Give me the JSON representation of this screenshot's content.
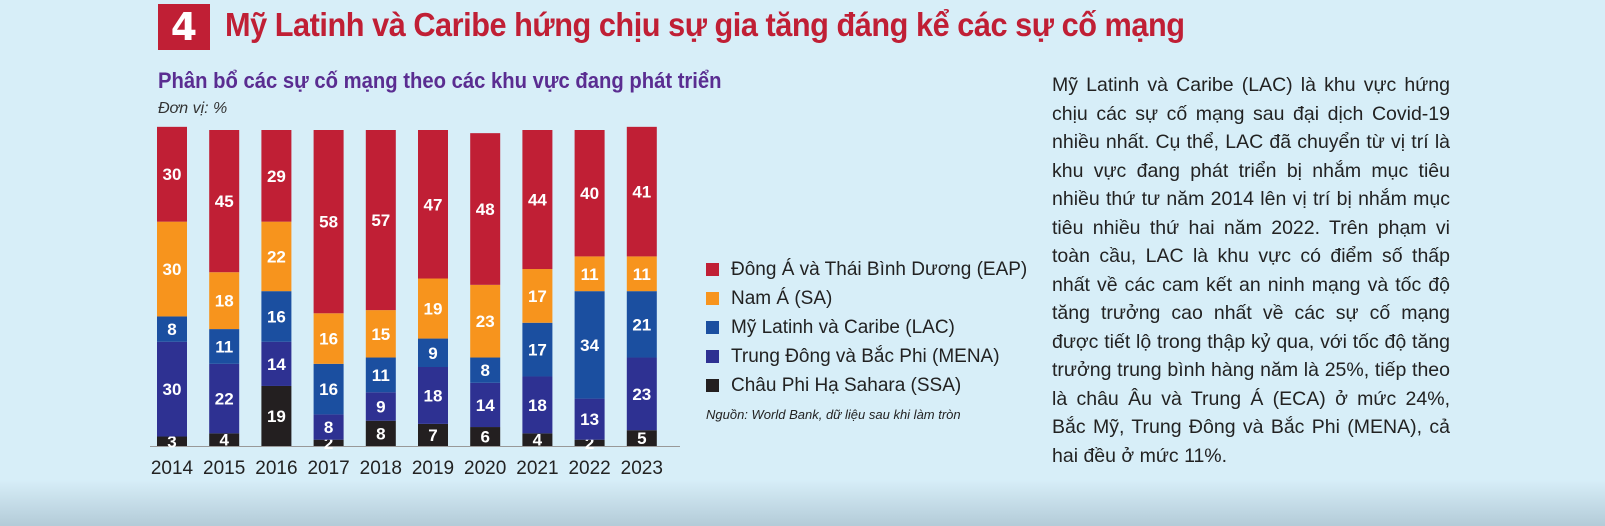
{
  "header": {
    "number": "4",
    "title": "Mỹ Latinh và Caribe hứng chịu sự gia tăng đáng kể các sự cố mạng"
  },
  "chart_data": {
    "type": "bar",
    "stacked": true,
    "title": "Phân bổ các sự cố mạng theo các khu vực đang phát triển",
    "unit_label": "Đơn vị: %",
    "categories": [
      "2014",
      "2015",
      "2016",
      "2017",
      "2018",
      "2019",
      "2020",
      "2021",
      "2022",
      "2023"
    ],
    "series": [
      {
        "name": "Châu Phi Hạ Sahara (SSA)",
        "color": "#231f20",
        "values": [
          3,
          4,
          19,
          2,
          8,
          7,
          6,
          4,
          2,
          5
        ]
      },
      {
        "name": "Trung Đông và Bắc Phi (MENA)",
        "color": "#2e3192",
        "values": [
          30,
          22,
          14,
          8,
          9,
          18,
          14,
          18,
          13,
          23
        ]
      },
      {
        "name": "Mỹ Latinh và Caribe (LAC)",
        "color": "#1b4fa0",
        "values": [
          8,
          11,
          16,
          16,
          11,
          9,
          8,
          17,
          34,
          21
        ]
      },
      {
        "name": "Nam Á (SA)",
        "color": "#f7941d",
        "values": [
          30,
          18,
          22,
          16,
          15,
          19,
          23,
          17,
          11,
          11
        ]
      },
      {
        "name": "Đông Á và Thái Bình Dương (EAP)",
        "color": "#c01f35",
        "values": [
          30,
          45,
          29,
          58,
          57,
          47,
          48,
          44,
          40,
          41
        ]
      }
    ],
    "legend_position": "right",
    "ylim": [
      0,
      100
    ],
    "grid": false,
    "source": "Nguồn: World Bank, dữ liệu sau khi làm tròn"
  },
  "legend": [
    {
      "label": "Đông Á và Thái Bình Dương (EAP)",
      "color": "#c01f35"
    },
    {
      "label": "Nam Á (SA)",
      "color": "#f7941d"
    },
    {
      "label": "Mỹ Latinh và Caribe (LAC)",
      "color": "#1b4fa0"
    },
    {
      "label": "Trung Đông và Bắc Phi (MENA)",
      "color": "#2e3192"
    },
    {
      "label": "Châu Phi Hạ Sahara (SSA)",
      "color": "#231f20"
    }
  ],
  "paragraph": "Mỹ Latinh và Caribe (LAC) là khu vực hứng chịu các sự cố mạng sau đại dịch Covid-19 nhiều nhất. Cụ thể, LAC đã chuyển từ vị trí là khu vực đang phát triển bị nhắm mục tiêu nhiều thứ tư năm 2014 lên vị trí bị nhắm mục tiêu nhiều thứ hai năm 2022. Trên phạm vi toàn cầu, LAC là khu vực có điểm số thấp nhất về các cam kết an ninh mạng và tốc độ tăng trưởng cao nhất về các sự cố mạng được tiết lộ trong thập kỷ qua, với tốc độ tăng trưởng trung bình hàng năm là 25%, tiếp theo là châu Âu và Trung Á (ECA) ở mức 24%, Bắc Mỹ, Trung Đông và Bắc Phi (MENA), cả hai đều ở mức 11%."
}
